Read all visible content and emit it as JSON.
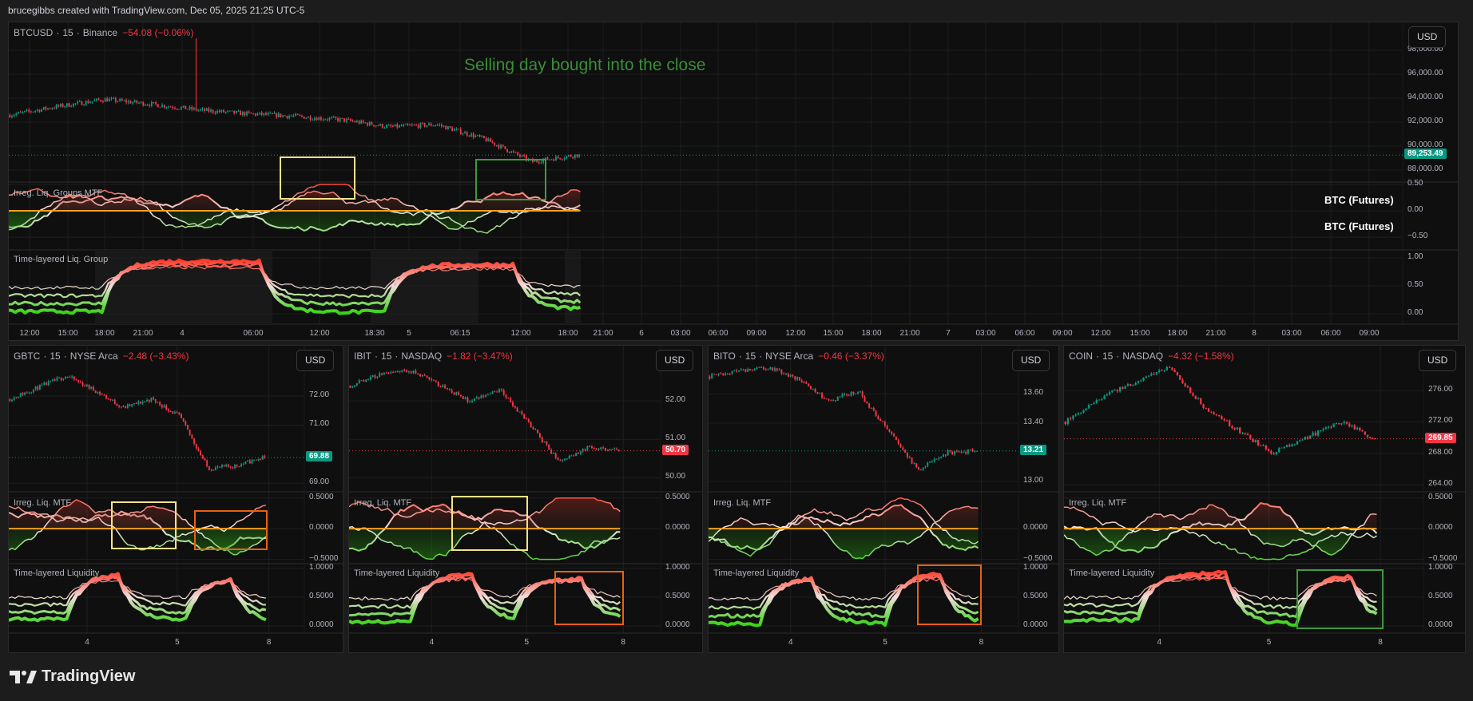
{
  "header": {
    "attribution": "brucegibbs created with TradingView.com, Dec 05, 2025 21:25 UTC-5"
  },
  "colors": {
    "up": "#089981",
    "down": "#f23645",
    "zero_line": "#f0a020",
    "annotation": "#3a8e3a"
  },
  "main": {
    "symbol": "BTCUSD",
    "interval": "15",
    "exchange": "Binance",
    "change": "−54.08 (−0.06%)",
    "currency": "USD",
    "annotation": "Selling day bought into the close",
    "price_range": [
      87000,
      100333
    ],
    "price_ticks": [
      {
        "v": 98000,
        "label": "98,000.00"
      },
      {
        "v": 96000,
        "label": "96,000.00"
      },
      {
        "v": 94000,
        "label": "94,000.00"
      },
      {
        "v": 92000,
        "label": "92,000.00"
      },
      {
        "v": 90000,
        "label": "90,000.00"
      },
      {
        "v": 88000,
        "label": "88,000.00"
      }
    ],
    "last_price": {
      "v": 89253.49,
      "label": "89,253.49",
      "color": "#089981"
    },
    "osc1": {
      "title": "Irreg. Liq. Groups MTF",
      "label": "BTC (Futures)",
      "range": [
        -0.74,
        0.545
      ],
      "ticks": [
        {
          "v": 0.5,
          "label": "0.50"
        },
        {
          "v": 0,
          "label": "0.00"
        },
        {
          "v": -0.5,
          "label": "−0.50"
        }
      ]
    },
    "osc2": {
      "title": "Time-layered Liq. Group",
      "label": "BTC (Futures)",
      "range": [
        -0.186,
        1.143
      ],
      "ticks": [
        {
          "v": 1,
          "label": "1.00"
        },
        {
          "v": 0.5,
          "label": "0.50"
        },
        {
          "v": 0,
          "label": "0.00"
        }
      ]
    },
    "time_axis": [
      "12:00",
      "15:00",
      "18:00",
      "21:00",
      "4",
      "06:00",
      "12:00",
      "18:30",
      "5",
      "06:15",
      "12:00",
      "18:00",
      "21:00",
      "6",
      "03:00",
      "06:00",
      "09:00",
      "12:00",
      "15:00",
      "18:00",
      "21:00",
      "7",
      "03:00",
      "06:00",
      "09:00",
      "12:00",
      "15:00",
      "18:00",
      "21:00",
      "8",
      "03:00",
      "06:00",
      "09:00"
    ]
  },
  "panels": [
    {
      "id": "gbtc",
      "symbol": "GBTC",
      "interval": "15",
      "exchange": "NYSE Arca",
      "change": "−2.48 (−3.43%)",
      "currency": "USD",
      "price_range": [
        68.7,
        73.74
      ],
      "price_ticks": [
        {
          "v": 72,
          "label": "72.00"
        },
        {
          "v": 71,
          "label": "71.00"
        },
        {
          "v": 69,
          "label": "69.00"
        }
      ],
      "last_price": {
        "v": 69.88,
        "label": "69.88",
        "color": "#089981"
      },
      "osc1": {
        "title": "Irreg. Liq. MTF",
        "ticks": [
          {
            "v": 0.5,
            "label": "0.5000"
          },
          {
            "v": 0,
            "label": "0.0000"
          },
          {
            "v": -0.5,
            "label": "−0.5000"
          }
        ]
      },
      "osc2": {
        "title": "Time-layered Liquidity",
        "ticks": [
          {
            "v": 1,
            "label": "1.0000"
          },
          {
            "v": 0.5,
            "label": "0.5000"
          },
          {
            "v": 0,
            "label": "0.0000"
          }
        ]
      },
      "time_axis": [
        "4",
        "5",
        "8"
      ]
    },
    {
      "id": "ibit",
      "symbol": "IBIT",
      "interval": "15",
      "exchange": "NASDAQ",
      "change": "−1.82 (−3.47%)",
      "currency": "USD",
      "price_range": [
        49.63,
        53.44
      ],
      "price_ticks": [
        {
          "v": 52,
          "label": "52.00"
        },
        {
          "v": 51,
          "label": "51.00"
        },
        {
          "v": 50,
          "label": "50.00"
        }
      ],
      "last_price": {
        "v": 50.7,
        "label": "50.70",
        "color": "#f23645"
      },
      "osc1": {
        "title": "Irreg. Liq. MTF",
        "ticks": [
          {
            "v": 0.5,
            "label": "0.5000"
          },
          {
            "v": 0,
            "label": "0.0000"
          }
        ]
      },
      "osc2": {
        "title": "Time-layered Liquidity",
        "ticks": [
          {
            "v": 1,
            "label": "1.0000"
          },
          {
            "v": 0.5,
            "label": "0.5000"
          },
          {
            "v": 0,
            "label": "0.0000"
          }
        ]
      },
      "time_axis": [
        "4",
        "5",
        "8"
      ]
    },
    {
      "id": "bito",
      "symbol": "BITO",
      "interval": "15",
      "exchange": "NYSE Arca",
      "change": "−0.46 (−3.37%)",
      "currency": "USD",
      "price_range": [
        12.93,
        13.93
      ],
      "price_ticks": [
        {
          "v": 13.6,
          "label": "13.60"
        },
        {
          "v": 13.4,
          "label": "13.40"
        },
        {
          "v": 13.0,
          "label": "13.00"
        }
      ],
      "last_price": {
        "v": 13.21,
        "label": "13.21",
        "color": "#089981"
      },
      "osc1": {
        "title": "Irreg. Liq. MTF",
        "ticks": [
          {
            "v": 0,
            "label": "0.0000"
          },
          {
            "v": -0.5,
            "label": "−0.5000"
          }
        ]
      },
      "osc2": {
        "title": "Time-layered Liquidity",
        "ticks": [
          {
            "v": 1,
            "label": "1.0000"
          },
          {
            "v": 0.5,
            "label": "0.5000"
          },
          {
            "v": 0,
            "label": "0.0000"
          }
        ]
      },
      "time_axis": [
        "4",
        "5",
        "8"
      ]
    },
    {
      "id": "coin",
      "symbol": "COIN",
      "interval": "15",
      "exchange": "NASDAQ",
      "change": "−4.32 (−1.58%)",
      "currency": "USD",
      "price_range": [
        263.1,
        281.7
      ],
      "price_ticks": [
        {
          "v": 276,
          "label": "276.00"
        },
        {
          "v": 272,
          "label": "272.00"
        },
        {
          "v": 268,
          "label": "268.00"
        },
        {
          "v": 264,
          "label": "264.00"
        }
      ],
      "last_price": {
        "v": 269.85,
        "label": "269.85",
        "color": "#f23645"
      },
      "osc1": {
        "title": "Irreg. Liq. MTF",
        "ticks": [
          {
            "v": 0.5,
            "label": "0.5000"
          },
          {
            "v": 0,
            "label": "0.0000"
          },
          {
            "v": -0.5,
            "label": "−0.5000"
          }
        ]
      },
      "osc2": {
        "title": "Time-layered Liquidity",
        "ticks": [
          {
            "v": 1,
            "label": "1.0000"
          },
          {
            "v": 0.5,
            "label": "0.5000"
          },
          {
            "v": 0,
            "label": "0.0000"
          }
        ]
      },
      "time_axis": [
        "4",
        "5",
        "8"
      ]
    }
  ],
  "footer": {
    "logo": "TradingView"
  }
}
